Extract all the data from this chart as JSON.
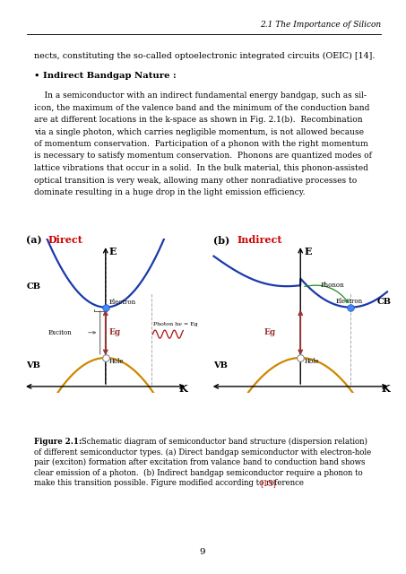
{
  "page_width": 4.53,
  "page_height": 6.4,
  "bg_color": "#ffffff",
  "header_text": "2.1 The Importance of Silicon",
  "body_text_line1": "nects, constituting the so-called optoelectronic integrated circuits (OEIC) [14].",
  "bullet_title": "• Indirect Bandgap Nature :",
  "body_paragraph_lines": [
    "    In a semiconductor with an indirect fundamental energy bandgap, such as sil-",
    "icon, the maximum of the valence band and the minimum of the conduction band",
    "are at different locations in the k-space as shown in Fig. 2.1(b).  Recombination",
    "via a single photon, which carries negligible momentum, is not allowed because",
    "of momentum conservation.  Participation of a phonon with the right momentum",
    "is necessary to satisfy momentum conservation.  Phonons are quantized modes of",
    "lattice vibrations that occur in a solid.  In the bulk material, this phonon-assisted",
    "optical transition is very weak, allowing many other nonradiative processes to",
    "dominate resulting in a huge drop in the light emission efficiency."
  ],
  "fig_label_a": "(a)",
  "fig_title_a": "Direct",
  "fig_title_a_color": "#cc0000",
  "fig_label_b": "(b)",
  "fig_title_b": "Indirect",
  "fig_title_b_color": "#cc0000",
  "cb_label": "CB",
  "vb_label": "VB",
  "E_label": "E",
  "K_label": "K",
  "Eg_label": "Eg",
  "electron_label": "Electron",
  "hole_label": "Hole",
  "exciton_label": "Exciton",
  "phonon_label": "Phonon",
  "photon_label": "Photon hν = Eg",
  "cb_color": "#1a3aaa",
  "vb_color": "#cc8800",
  "electron_dot_color": "#4488ff",
  "arrow_color": "#993333",
  "dashed_color": "#aaaaaa",
  "caption_bold": "Figure 2.1:",
  "caption_rest": " Schematic diagram of semiconductor band structure (dispersion relation)\nof different semiconductor types. (a) Direct bandgap semiconductor with electron-hole\npair (exciton) formation after excitation from valance band to conduction band shows\nclear emission of a photon.  (b) Indirect bandgap semiconductor require a phonon to\nmake this transition possible. Figure modified according to reference ",
  "caption_ref": "[15]",
  "page_number": "9"
}
